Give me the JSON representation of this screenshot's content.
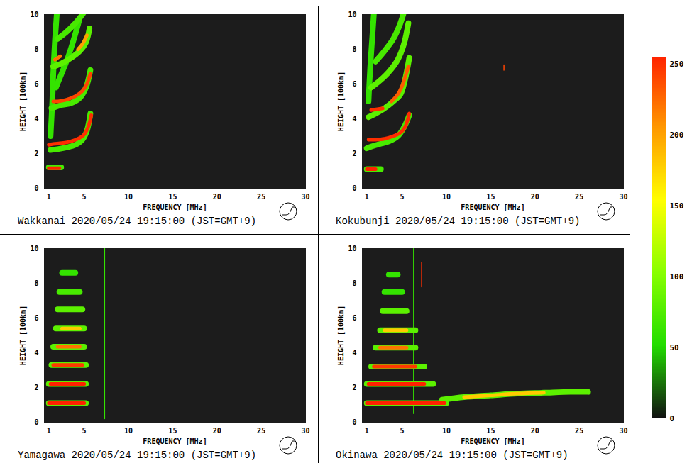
{
  "chart_data": [
    {
      "type": "ionogram",
      "title": "Wakkanai 2020/05/24 19:15:00 (JST=GMT+9)",
      "x_label": "FREQUENCY [MHz]",
      "y_label": "HEIGHT [100km]",
      "xlim": [
        0.5,
        30
      ],
      "ylim": [
        0,
        10
      ],
      "xticks": [
        1,
        5,
        10,
        15,
        20,
        25,
        30
      ],
      "yticks": [
        0,
        2,
        4,
        6,
        8,
        10
      ],
      "traces": [
        {
          "x": [
            1.2,
            1.4,
            1.5,
            1.7,
            1.9
          ],
          "y": [
            3.0,
            5.0,
            6.5,
            8.5,
            10.0
          ],
          "intensity": 60
        },
        {
          "x": [
            1.8,
            2.2,
            2.6,
            3.0,
            3.6,
            4.4
          ],
          "y": [
            5.8,
            6.3,
            6.8,
            7.3,
            8.2,
            9.6
          ],
          "intensity": 60
        },
        {
          "x": [
            2.0,
            3.0,
            4.0,
            4.8,
            5.4
          ],
          "y": [
            8.6,
            9.0,
            9.5,
            10.0,
            10.5
          ],
          "intensity": 70
        },
        {
          "x": [
            1.5,
            2.5,
            3.5,
            4.5,
            5.2,
            5.6
          ],
          "y": [
            7.0,
            7.2,
            7.5,
            7.9,
            8.4,
            9.2
          ],
          "intensity": 80
        },
        {
          "x": [
            1.3,
            2.5,
            3.5,
            4.5,
            5.2,
            5.7
          ],
          "y": [
            4.6,
            4.8,
            4.9,
            5.2,
            5.8,
            6.8
          ],
          "intensity": 70
        },
        {
          "x": [
            1.2,
            2.0,
            3.0,
            4.0,
            4.8,
            5.3,
            5.7
          ],
          "y": [
            2.2,
            2.25,
            2.35,
            2.5,
            2.8,
            3.3,
            4.3
          ],
          "intensity": 70
        },
        {
          "x": [
            1.0,
            2.4
          ],
          "y": [
            1.2,
            1.2
          ],
          "intensity": 70
        },
        {
          "x": [
            4.3,
            4.8,
            5.3
          ],
          "y": [
            8.0,
            8.3,
            8.8
          ],
          "intensity": 200
        },
        {
          "x": [
            1.7,
            2.0,
            2.3
          ],
          "y": [
            7.4,
            7.5,
            7.6
          ],
          "intensity": 220
        },
        {
          "x": [
            1.5,
            2.0,
            3.0,
            4.0,
            4.8,
            5.3,
            5.7
          ],
          "y": [
            5.0,
            5.0,
            5.1,
            5.3,
            5.6,
            6.0,
            6.6
          ],
          "intensity": 240
        },
        {
          "x": [
            1.0,
            1.5,
            2.5,
            3.5,
            4.5,
            5.0,
            5.5,
            5.8
          ],
          "y": [
            2.5,
            2.55,
            2.6,
            2.7,
            2.9,
            3.1,
            3.6,
            4.2
          ],
          "intensity": 250
        },
        {
          "x": [
            1.0,
            1.5,
            2.2
          ],
          "y": [
            1.15,
            1.15,
            1.15
          ],
          "intensity": 255
        }
      ]
    },
    {
      "type": "ionogram",
      "title": "Kokubunji 2020/05/24 19:15:00 (JST=GMT+9)",
      "x_label": "FREQUENCY [MHz]",
      "y_label": "HEIGHT [100km]",
      "xlim": [
        0.5,
        30
      ],
      "ylim": [
        0,
        10
      ],
      "xticks": [
        1,
        5,
        10,
        15,
        20,
        25,
        30
      ],
      "yticks": [
        0,
        2,
        4,
        6,
        8,
        10
      ],
      "traces": [
        {
          "x": [
            1.2,
            1.4,
            1.6,
            1.8
          ],
          "y": [
            5.0,
            7.0,
            8.5,
            10.0
          ],
          "intensity": 60
        },
        {
          "x": [
            2.0,
            3.0,
            4.0,
            4.8,
            5.4
          ],
          "y": [
            7.3,
            7.9,
            8.6,
            9.5,
            10.5
          ],
          "intensity": 70
        },
        {
          "x": [
            1.5,
            2.5,
            3.5,
            4.5,
            5.2,
            5.7
          ],
          "y": [
            5.8,
            6.2,
            6.7,
            7.4,
            8.3,
            9.5
          ],
          "intensity": 80
        },
        {
          "x": [
            1.2,
            2.0,
            3.0,
            4.0,
            4.8,
            5.3,
            5.8
          ],
          "y": [
            4.1,
            4.3,
            4.6,
            5.0,
            5.4,
            6.2,
            7.5
          ],
          "intensity": 80
        },
        {
          "x": [
            1.0,
            1.5,
            2.5,
            3.5,
            4.5,
            5.2,
            5.8
          ],
          "y": [
            2.3,
            2.4,
            2.55,
            2.7,
            3.0,
            3.5,
            4.2
          ],
          "intensity": 70
        },
        {
          "x": [
            1.0,
            2.6
          ],
          "y": [
            1.1,
            1.1
          ],
          "intensity": 70
        },
        {
          "x": [
            3.8,
            4.5,
            5.0,
            5.4,
            5.7
          ],
          "y": [
            5.0,
            5.4,
            5.9,
            6.5,
            7.0
          ],
          "intensity": 230
        },
        {
          "x": [
            16.5,
            16.5
          ],
          "y": [
            6.8,
            7.1
          ],
          "intensity": 240
        },
        {
          "x": [
            1.5,
            2.2,
            2.8
          ],
          "y": [
            4.5,
            4.55,
            4.6
          ],
          "intensity": 250
        },
        {
          "x": [
            1.2,
            2.0,
            3.0,
            4.0,
            4.8,
            5.3,
            5.6,
            5.8
          ],
          "y": [
            2.8,
            2.8,
            2.85,
            3.0,
            3.2,
            3.5,
            3.9,
            4.3
          ],
          "intensity": 250
        },
        {
          "x": [
            1.0,
            1.5,
            2.0
          ],
          "y": [
            1.1,
            1.1,
            1.1
          ],
          "intensity": 255
        }
      ]
    },
    {
      "type": "ionogram",
      "title": "Yamagawa 2020/05/24 19:15:00 (JST=GMT+9)",
      "x_label": "FREQUENCY [MHz]",
      "y_label": "HEIGHT [100km]",
      "xlim": [
        0.5,
        30
      ],
      "ylim": [
        0,
        10
      ],
      "xticks": [
        1,
        5,
        10,
        15,
        20,
        25,
        30
      ],
      "yticks": [
        0,
        2,
        4,
        6,
        8,
        10
      ],
      "traces": [
        {
          "x": [
            7.3,
            7.3
          ],
          "y": [
            0.2,
            10.0
          ],
          "intensity": 60
        },
        {
          "x": [
            2.5,
            4.0
          ],
          "y": [
            8.6,
            8.6
          ],
          "intensity": 60
        },
        {
          "x": [
            2.2,
            4.5
          ],
          "y": [
            7.5,
            7.5
          ],
          "intensity": 70
        },
        {
          "x": [
            2.0,
            4.8
          ],
          "y": [
            6.5,
            6.5
          ],
          "intensity": 80
        },
        {
          "x": [
            1.8,
            5.0
          ],
          "y": [
            5.4,
            5.4
          ],
          "intensity": 80
        },
        {
          "x": [
            1.5,
            5.0
          ],
          "y": [
            4.35,
            4.35
          ],
          "intensity": 80
        },
        {
          "x": [
            1.3,
            5.2
          ],
          "y": [
            3.3,
            3.3
          ],
          "intensity": 80
        },
        {
          "x": [
            1.0,
            5.2
          ],
          "y": [
            2.2,
            2.2
          ],
          "intensity": 80
        },
        {
          "x": [
            1.0,
            5.2
          ],
          "y": [
            1.1,
            1.1
          ],
          "intensity": 80
        },
        {
          "x": [
            2.5,
            4.5
          ],
          "y": [
            5.4,
            5.4
          ],
          "intensity": 180
        },
        {
          "x": [
            2.0,
            4.5
          ],
          "y": [
            4.35,
            4.35
          ],
          "intensity": 220
        },
        {
          "x": [
            1.5,
            4.8
          ],
          "y": [
            3.3,
            3.3
          ],
          "intensity": 245
        },
        {
          "x": [
            1.2,
            5.0
          ],
          "y": [
            2.2,
            2.2
          ],
          "intensity": 255
        },
        {
          "x": [
            1.0,
            5.0
          ],
          "y": [
            1.1,
            1.1
          ],
          "intensity": 255
        }
      ]
    },
    {
      "type": "ionogram",
      "title": "Okinawa 2020/05/24 19:15:00 (JST=GMT+9)",
      "x_label": "FREQUENCY [MHz]",
      "y_label": "HEIGHT [100km]",
      "xlim": [
        0.5,
        30
      ],
      "ylim": [
        0,
        10
      ],
      "xticks": [
        1,
        5,
        10,
        15,
        20,
        25,
        30
      ],
      "yticks": [
        0,
        2,
        4,
        6,
        8,
        10
      ],
      "traces": [
        {
          "x": [
            6.3,
            6.3
          ],
          "y": [
            0.5,
            10.0
          ],
          "intensity": 60
        },
        {
          "x": [
            3.5,
            4.5
          ],
          "y": [
            8.5,
            8.5
          ],
          "intensity": 60
        },
        {
          "x": [
            3.0,
            5.0
          ],
          "y": [
            7.5,
            7.5
          ],
          "intensity": 60
        },
        {
          "x": [
            2.8,
            5.5
          ],
          "y": [
            6.4,
            6.4
          ],
          "intensity": 80
        },
        {
          "x": [
            2.5,
            6.5
          ],
          "y": [
            5.3,
            5.3
          ],
          "intensity": 80
        },
        {
          "x": [
            2.0,
            6.5
          ],
          "y": [
            4.3,
            4.3
          ],
          "intensity": 80
        },
        {
          "x": [
            1.5,
            7.5
          ],
          "y": [
            3.2,
            3.2
          ],
          "intensity": 80
        },
        {
          "x": [
            1.0,
            8.5
          ],
          "y": [
            2.2,
            2.2
          ],
          "intensity": 80
        },
        {
          "x": [
            1.0,
            10.0
          ],
          "y": [
            1.1,
            1.1
          ],
          "intensity": 80
        },
        {
          "x": [
            9.5,
            12.0,
            15.0,
            18.0,
            21.0,
            24.0,
            26.0
          ],
          "y": [
            1.3,
            1.45,
            1.55,
            1.65,
            1.7,
            1.75,
            1.75
          ],
          "intensity": 80
        },
        {
          "x": [
            12.0,
            15.0,
            18.0,
            21.0
          ],
          "y": [
            1.45,
            1.55,
            1.65,
            1.7
          ],
          "intensity": 180
        },
        {
          "x": [
            3.0,
            5.5
          ],
          "y": [
            5.3,
            5.3
          ],
          "intensity": 180
        },
        {
          "x": [
            2.5,
            5.5
          ],
          "y": [
            4.3,
            4.3
          ],
          "intensity": 220
        },
        {
          "x": [
            1.8,
            6.5
          ],
          "y": [
            3.2,
            3.2
          ],
          "intensity": 245
        },
        {
          "x": [
            7.2,
            7.2
          ],
          "y": [
            7.8,
            9.2
          ],
          "intensity": 250
        },
        {
          "x": [
            1.2,
            7.5
          ],
          "y": [
            2.2,
            2.2
          ],
          "intensity": 255
        },
        {
          "x": [
            1.0,
            9.8
          ],
          "y": [
            1.1,
            1.1
          ],
          "intensity": 255
        }
      ]
    }
  ],
  "colorbar": {
    "range": [
      0,
      255
    ],
    "ticks": [
      0,
      50,
      100,
      150,
      200,
      250
    ],
    "colors": [
      "#111111",
      "#22dd00",
      "#88ff00",
      "#ffff00",
      "#ff9900",
      "#ff2200"
    ]
  }
}
